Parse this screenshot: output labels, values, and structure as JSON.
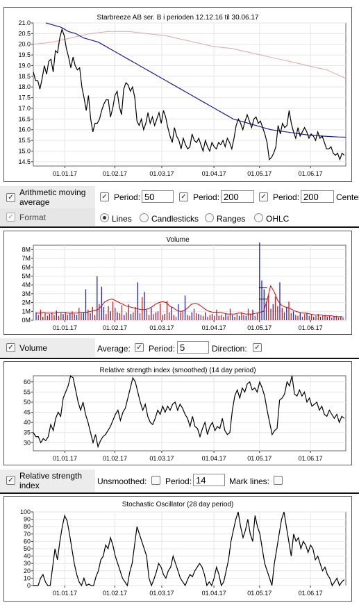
{
  "price_chart": {
    "title": "Starbreeze AB ser. B i perioden 12.12.16 til 30.06.17",
    "y_ticks": [
      "21.0",
      "20.5",
      "20.0",
      "19.5",
      "19.0",
      "18.5",
      "18.0",
      "17.5",
      "17.0",
      "16.5",
      "16.0",
      "15.5",
      "15.0",
      "14.5"
    ],
    "x_ticks": [
      "01.01.17",
      "01.02.17",
      "01.03.17",
      "01.04.17",
      "01.05.17",
      "01.06.17"
    ]
  },
  "ma_controls": {
    "label": "Arithmetic moving average",
    "period_label": "Period:",
    "period1": "50",
    "period2": "200",
    "period3": "200",
    "center_label": "Center"
  },
  "format_controls": {
    "label": "Format",
    "options": [
      "Lines",
      "Candlesticks",
      "Ranges",
      "OHLC"
    ],
    "selected": "Lines"
  },
  "volume_chart": {
    "title": "Volume",
    "y_ticks": [
      "8M",
      "7M",
      "6M",
      "5M",
      "4M",
      "3M",
      "2M",
      "1M",
      "0M"
    ],
    "x_ticks": [
      "01.01.17",
      "01.02.17",
      "01.03.17",
      "01.04.17",
      "01.05.17",
      "01.06.17"
    ]
  },
  "volume_controls": {
    "label": "Volume",
    "average_label": "Average:",
    "period_label": "Period:",
    "period": "5",
    "direction_label": "Direction:"
  },
  "rsi_chart": {
    "title": "Relative strength index (smoothed) (14 day period)",
    "y_ticks": [
      "60",
      "55",
      "50",
      "45",
      "40",
      "35",
      "30"
    ],
    "x_ticks": [
      "01.01.17",
      "01.02.17",
      "01.03.17",
      "01.04.17",
      "01.05.17",
      "01.06.17"
    ]
  },
  "rsi_controls": {
    "label": "Relative strength index",
    "unsmoothed_label": "Unsmoothed:",
    "period_label": "Period:",
    "period": "14",
    "marklines_label": "Mark lines:"
  },
  "stoch_chart": {
    "title": "Stochastic Oscillator (28 day period)",
    "y_ticks": [
      "100",
      "90",
      "80",
      "70",
      "60",
      "50",
      "40",
      "30",
      "20",
      "10",
      "0"
    ],
    "x_ticks": [
      "01.01.17",
      "01.02.17",
      "01.03.17",
      "01.04.17",
      "01.05.17",
      "01.06.17"
    ]
  },
  "colors": {
    "price_line": "#000000",
    "ma50": "#1a1aa8",
    "ma200": "#e8a0a8",
    "vol_up": "#2020c0",
    "vol_down": "#c02020",
    "vol_avg": "#dd0000"
  },
  "chart_data": [
    {
      "type": "line",
      "title": "Starbreeze AB ser. B i perioden 12.12.16 til 30.06.17",
      "ylim": [
        14.3,
        21.0
      ],
      "series": [
        {
          "values": [
            18.7,
            18.3,
            18.3,
            17.9,
            18.4,
            19.0,
            18.6,
            19.2,
            19.3,
            18.7,
            19.7,
            19.6,
            20.3,
            20.7,
            20.4,
            19.8,
            19.4,
            18.9,
            19.4,
            19.0,
            18.8,
            18.9,
            18.0,
            17.5,
            16.9,
            17.6,
            16.5,
            15.9,
            16.3,
            16.3,
            16.5,
            16.9,
            17.2,
            17.4,
            17.4,
            16.6,
            17.0,
            17.6,
            17.8,
            17.1,
            16.7,
            17.9,
            18.2,
            18.1,
            17.8,
            18.0,
            17.5,
            16.4,
            16.2,
            16.5,
            16.0,
            16.3,
            16.8,
            16.3,
            16.6,
            16.2,
            16.5,
            16.8,
            16.3,
            16.9,
            16.6,
            16.1,
            15.7,
            15.4,
            16.1,
            15.7,
            15.5,
            15.1,
            15.6,
            15.3,
            15.1,
            15.2,
            15.8,
            15.5,
            15.4,
            15.6,
            15.3,
            15.0,
            15.5,
            15.2,
            15.0,
            15.4,
            15.2,
            15.1,
            15.4,
            15.3,
            15.5,
            15.2,
            15.6,
            15.4,
            15.1,
            15.6,
            16.2,
            16.5,
            16.3,
            16.0,
            16.4,
            16.7,
            16.4,
            16.1,
            16.5,
            16.6,
            16.3,
            16.4,
            16.1,
            15.8,
            15.4,
            14.6,
            14.7,
            14.9,
            15.2,
            16.2,
            15.8,
            16.3,
            16.1,
            16.2,
            16.9,
            16.3,
            15.9,
            15.6,
            16.1,
            15.7,
            15.9,
            16.1,
            15.9,
            15.6,
            15.8,
            15.7,
            15.5,
            15.9,
            15.6,
            15.7,
            15.4,
            15.1,
            15.1,
            15.2,
            14.9,
            14.8,
            14.9,
            14.6,
            14.9,
            14.8
          ]
        },
        {
          "values": [
            21.0,
            20.9,
            20.8,
            20.6,
            20.5,
            20.3,
            20.2,
            20.1,
            19.9,
            19.7,
            19.5,
            19.3,
            19.1,
            18.9,
            18.7,
            18.5,
            18.3,
            18.1,
            17.9,
            17.7,
            17.5,
            17.3,
            17.1,
            16.9,
            16.7,
            16.5,
            16.4,
            16.3,
            16.2,
            16.1,
            16.0,
            15.95,
            15.9,
            15.85,
            15.8,
            15.75,
            15.72,
            15.7,
            15.68,
            15.66,
            15.65
          ]
        },
        {
          "values": [
            20.0,
            20.05,
            20.1,
            20.2,
            20.3,
            20.4,
            20.5,
            20.55,
            20.6,
            20.6,
            20.6,
            20.55,
            20.5,
            20.45,
            20.4,
            20.3,
            20.2,
            20.1,
            20.0,
            19.9,
            19.85,
            19.8,
            19.7,
            19.6,
            19.5,
            19.4,
            19.3,
            19.2,
            19.1,
            19.0,
            18.9,
            18.8,
            18.6,
            18.4
          ]
        }
      ]
    },
    {
      "type": "bar",
      "title": "Volume",
      "ylim": [
        0,
        8.5
      ],
      "series": [
        {
          "values": [
            0.9,
            0.6,
            1.2,
            0.4,
            0.8,
            0.5,
            0.7,
            0.9,
            0.6,
            1.1,
            0.5,
            0.8,
            0.7,
            0.9,
            0.6,
            0.8,
            1.0,
            0.7,
            0.6,
            1.4,
            0.8,
            0.9,
            3.5,
            1.2,
            0.8,
            1.5,
            0.6,
            5.0,
            1.8,
            3.8,
            1.5,
            0.7,
            1.6,
            1.0,
            2.1,
            1.4,
            0.9,
            0.8,
            1.7,
            0.6,
            0.9,
            1.8,
            0.7,
            0.9,
            1.5,
            4.3,
            0.8,
            2.6,
            3.2,
            1.2,
            0.6,
            1.4,
            0.7,
            0.9,
            1.0,
            1.9,
            0.6,
            0.7,
            2.2,
            0.9,
            1.5,
            0.6,
            0.4,
            1.8,
            0.9,
            1.1,
            2.8,
            0.6,
            0.5,
            0.9,
            1.3,
            0.8,
            0.7,
            0.6,
            0.5,
            0.9,
            0.4,
            0.6,
            0.7,
            0.5,
            1.2,
            0.5,
            0.6,
            0.4,
            0.8,
            0.5,
            1.3,
            0.6,
            0.4,
            0.7,
            0.5,
            0.9,
            0.6,
            0.5,
            1.3,
            0.7,
            1.2,
            0.5,
            0.8,
            8.8,
            4.5,
            3.5,
            2.1,
            2.8,
            1.3,
            1.8,
            2.7,
            1.6,
            4.3,
            1.4,
            0.9,
            1.5,
            2.1,
            0.8,
            1.0,
            0.6,
            0.5,
            0.9,
            0.4,
            0.7,
            0.8,
            0.5,
            0.6,
            0.4,
            0.5,
            0.7,
            0.4,
            0.5,
            0.6,
            0.4,
            0.5,
            0.3,
            0.4,
            0.5,
            0.3,
            0.4,
            0.3
          ]
        },
        {
          "values": [
            0.8,
            0.8,
            0.9,
            0.8,
            0.8,
            0.8,
            0.9,
            0.9,
            0.9,
            0.8,
            0.8,
            0.8,
            0.9,
            0.9,
            0.9,
            1.0,
            1.1,
            1.2,
            1.6,
            2.1,
            2.3,
            2.4,
            2.2,
            2.0,
            1.8,
            1.6,
            1.5,
            1.4,
            1.3,
            1.2,
            1.2,
            1.3,
            1.5,
            1.8,
            2.0,
            2.1,
            2.0,
            1.6,
            1.4,
            1.1,
            1.0,
            1.1,
            1.4,
            1.8,
            1.9,
            1.8,
            1.5,
            1.2,
            1.0,
            0.9,
            0.9,
            0.9,
            0.8,
            0.7,
            0.7,
            0.7,
            0.8,
            0.8,
            0.7,
            0.7,
            0.7,
            0.8,
            0.9,
            1.0,
            2.2,
            3.9,
            3.2,
            2.2,
            1.7,
            1.5,
            1.4,
            1.2,
            1.0,
            0.9,
            0.8,
            0.8,
            0.7,
            0.6,
            0.6,
            0.6,
            0.5,
            0.5,
            0.5,
            0.4,
            0.4,
            0.4
          ]
        }
      ]
    },
    {
      "type": "line",
      "title": "Relative strength index (smoothed) (14 day period)",
      "ylim": [
        26,
        63
      ],
      "series": [
        {
          "values": [
            35,
            33,
            33,
            30,
            32,
            31,
            33,
            39,
            36,
            42,
            45,
            43,
            52,
            55,
            58,
            63,
            62,
            56,
            50,
            46,
            50,
            44,
            40,
            35,
            30,
            34,
            28,
            31,
            33,
            34,
            36,
            38,
            41,
            44,
            46,
            41,
            45,
            47,
            52,
            57,
            62,
            60,
            55,
            50,
            46,
            49,
            43,
            40,
            39,
            42,
            46,
            44,
            48,
            45,
            48,
            46,
            49,
            50,
            46,
            49,
            47,
            44,
            42,
            38,
            43,
            38,
            37,
            33,
            37,
            40,
            34,
            38,
            40,
            36,
            38,
            37,
            42,
            36,
            34,
            35,
            46,
            53,
            56,
            52,
            57,
            55,
            59,
            60,
            56,
            57,
            55,
            60,
            57,
            53,
            46,
            40,
            34,
            36,
            37,
            51,
            52,
            54,
            60,
            58,
            63,
            54,
            53,
            56,
            53,
            55,
            50,
            52,
            48,
            49,
            50,
            46,
            48,
            44,
            43,
            46,
            44,
            42,
            44,
            40,
            43,
            42
          ]
        }
      ]
    },
    {
      "type": "line",
      "title": "Stochastic Oscillator (28 day period)",
      "ylim": [
        0,
        100
      ],
      "series": [
        {
          "values": [
            0,
            0,
            0,
            10,
            15,
            5,
            0,
            0,
            25,
            50,
            35,
            60,
            80,
            95,
            88,
            70,
            50,
            30,
            15,
            5,
            0,
            10,
            0,
            2,
            0,
            0,
            12,
            20,
            35,
            40,
            55,
            50,
            65,
            55,
            40,
            30,
            20,
            10,
            5,
            0,
            18,
            30,
            55,
            80,
            70,
            60,
            50,
            40,
            10,
            0,
            8,
            18,
            30,
            25,
            15,
            10,
            20,
            25,
            40,
            30,
            20,
            10,
            5,
            0,
            8,
            15,
            12,
            20,
            25,
            30,
            25,
            15,
            0,
            5,
            0,
            10,
            25,
            15,
            0,
            5,
            20,
            35,
            60,
            75,
            90,
            100,
            80,
            65,
            75,
            90,
            70,
            60,
            95,
            80,
            70,
            50,
            30,
            20,
            10,
            0,
            30,
            50,
            70,
            90,
            100,
            80,
            60,
            40,
            70,
            60,
            65,
            50,
            60,
            55,
            45,
            55,
            50,
            35,
            40,
            30,
            20,
            25,
            15,
            10,
            0,
            5,
            10,
            0,
            5,
            8
          ]
        }
      ]
    }
  ]
}
